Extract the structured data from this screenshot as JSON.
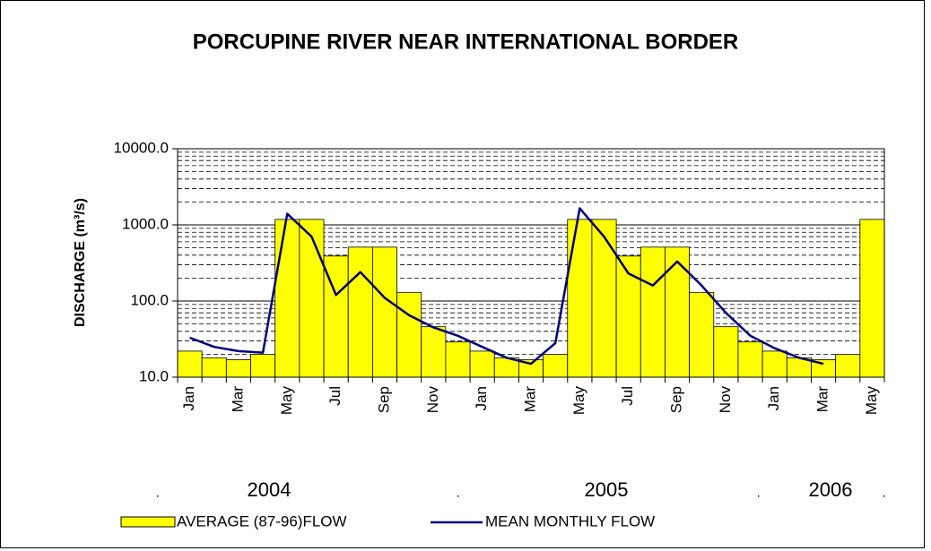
{
  "chart_data": {
    "type": "bar",
    "title": "PORCUPINE RIVER NEAR INTERNATIONAL BORDER",
    "y_label": "DISCHARGE (m³/s)",
    "categories": [
      "Jan",
      null,
      "Mar",
      null,
      "May",
      null,
      "Jul",
      null,
      "Sep",
      null,
      "Nov",
      null,
      "Jan",
      null,
      "Mar",
      null,
      "May",
      null,
      "Jul",
      null,
      "Sep",
      null,
      "Nov",
      null,
      "Jan",
      null,
      "Mar",
      null,
      "May"
    ],
    "year_labels": [
      "2004",
      "2005",
      "2006"
    ],
    "series": [
      {
        "name": "AVERAGE (87-96)FLOW",
        "type": "bar",
        "color": "#ffff00",
        "values": [
          22,
          18,
          17,
          20,
          1180,
          1180,
          390,
          510,
          510,
          130,
          46,
          29,
          22,
          18,
          17,
          20,
          1180,
          1180,
          390,
          510,
          510,
          130,
          46,
          29,
          22,
          18,
          17,
          20,
          1180
        ]
      },
      {
        "name": "MEAN MONTHLY FLOW",
        "type": "line",
        "color": "#000080",
        "values": [
          33,
          25,
          22,
          21,
          1400,
          700,
          120,
          240,
          110,
          65,
          45,
          35,
          25,
          18,
          15,
          28,
          1650,
          700,
          230,
          160,
          330,
          160,
          70,
          35,
          24,
          18,
          15,
          null,
          null
        ]
      }
    ],
    "log_scale": true,
    "ylim": [
      10,
      10000
    ],
    "yticks": [
      {
        "value": 10,
        "label": "10.0"
      },
      {
        "value": 100,
        "label": "100.0"
      },
      {
        "value": 1000,
        "label": "1000.0"
      },
      {
        "value": 10000,
        "label": "10000.0"
      }
    ],
    "minor_yticks": [
      20,
      30,
      40,
      50,
      60,
      70,
      80,
      90,
      200,
      300,
      400,
      500,
      600,
      700,
      800,
      900,
      2000,
      3000,
      4000,
      5000,
      6000,
      7000,
      8000,
      9000
    ],
    "grid": true
  }
}
